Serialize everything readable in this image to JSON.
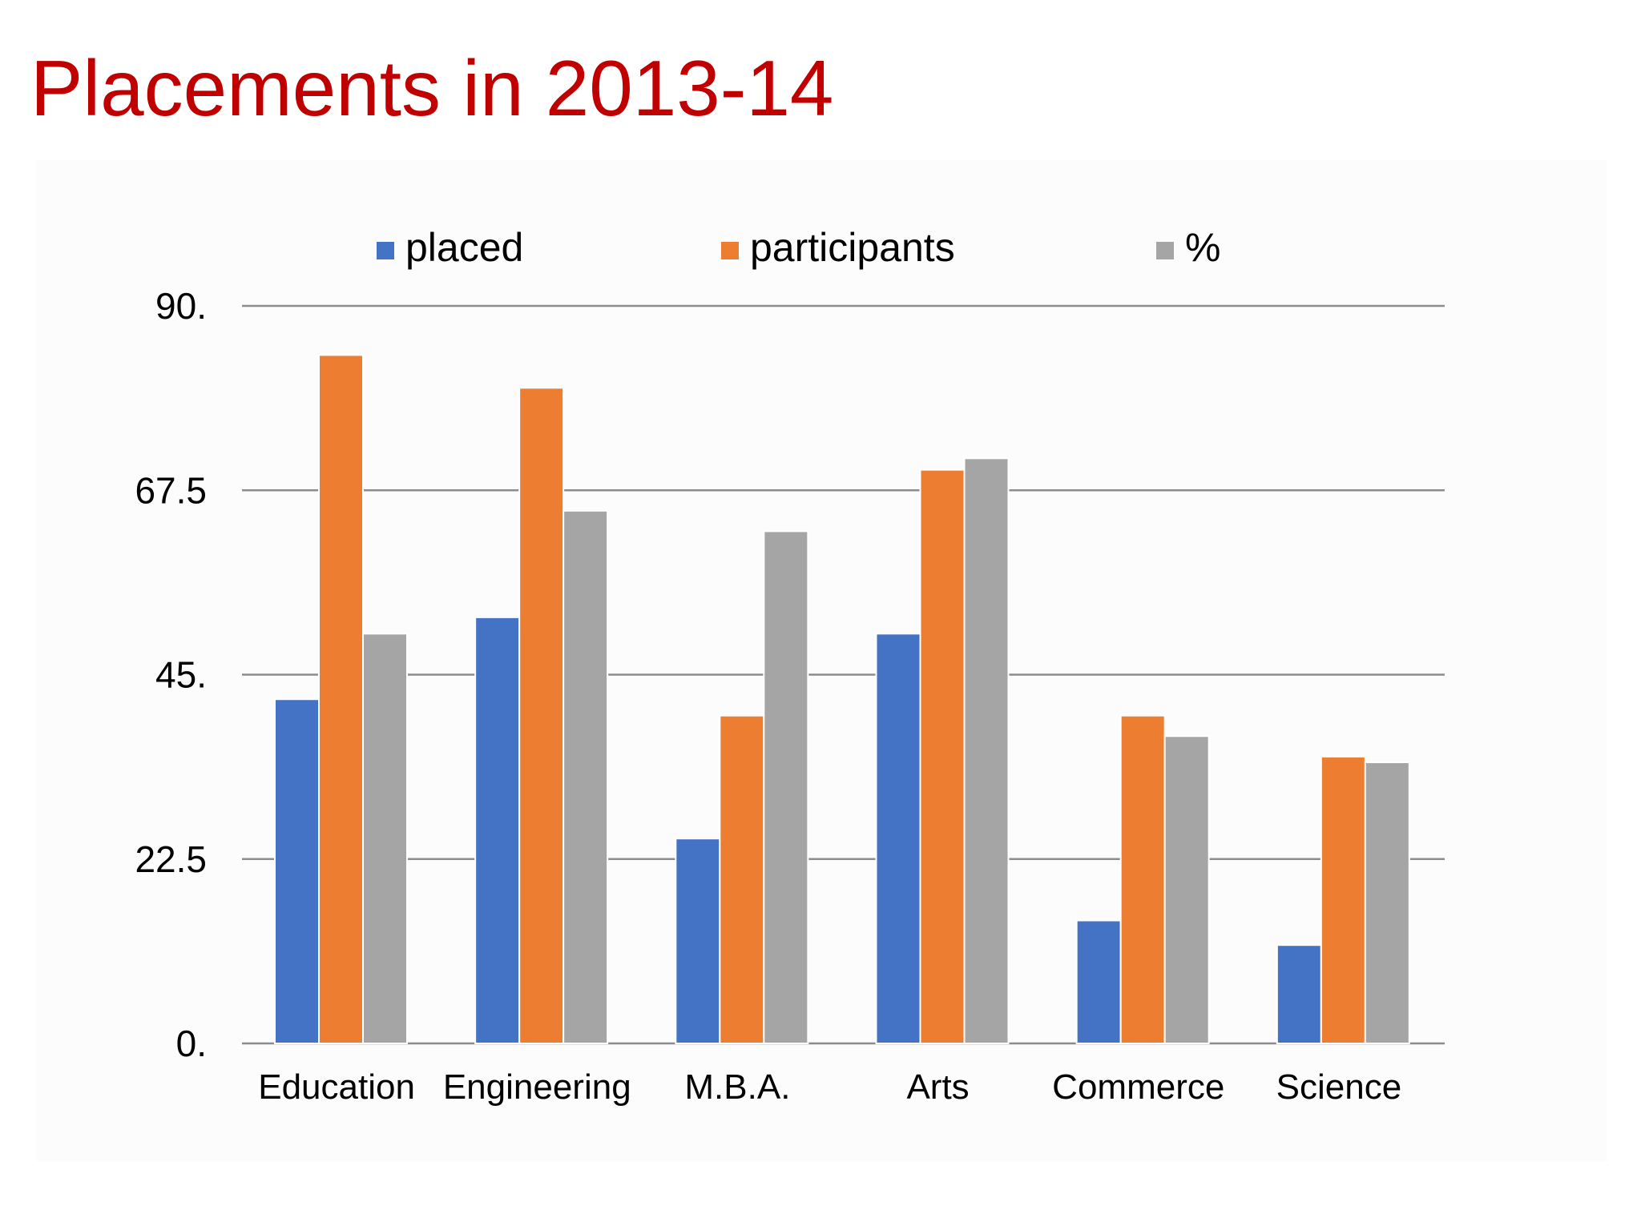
{
  "slide": {
    "title": "Placements in 2013-14"
  },
  "colors": {
    "title": "#c00000",
    "placed": "#4472c4",
    "participants": "#ed7d31",
    "percent": "#a5a5a5",
    "gridline": "#8c8c8c",
    "text": "#000000"
  },
  "chart_data": {
    "type": "bar",
    "categories": [
      "Education",
      "Engineering",
      "M.B.A.",
      "Arts",
      "Commerce",
      "Science"
    ],
    "series": [
      {
        "name": "placed",
        "color": "#4472c4",
        "values": [
          42,
          52,
          25,
          50,
          15,
          12
        ]
      },
      {
        "name": "participants",
        "color": "#ed7d31",
        "values": [
          84,
          80,
          40,
          70,
          40,
          35
        ]
      },
      {
        "name": "%",
        "color": "#a5a5a5",
        "values": [
          50,
          65,
          62.5,
          71.4,
          37.5,
          34.3
        ]
      }
    ],
    "ylim": [
      0,
      90
    ],
    "yticks": [
      0,
      22.5,
      45,
      67.5,
      90
    ],
    "ytick_labels": [
      "0.",
      "22.5",
      "45.",
      "67.5",
      "90."
    ],
    "legend_position": "top",
    "grid": true
  }
}
